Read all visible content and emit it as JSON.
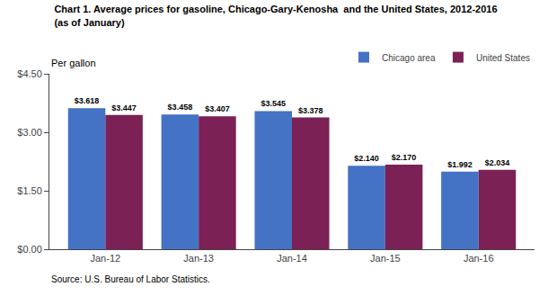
{
  "chart_data": {
    "type": "bar",
    "title": "Chart 1. Average prices for gasoline, Chicago-Gary-Kenosha  and the United States, 2012-2016",
    "subtitle": "(as of January)",
    "ylabel": "Per gallon",
    "annotations": [
      "Source: U.S. Bureau of Labor Statistics."
    ],
    "categories": [
      "Jan-12",
      "Jan-13",
      "Jan-14",
      "Jan-15",
      "Jan-16"
    ],
    "series": [
      {
        "name": "Chicago area",
        "color": "#4472C4",
        "values": [
          3.618,
          3.458,
          3.545,
          2.14,
          1.992
        ],
        "value_labels": [
          "$3.618",
          "$3.458",
          "$3.545",
          "$2.140",
          "$1.992"
        ]
      },
      {
        "name": "United States",
        "color": "#7B2155",
        "values": [
          3.447,
          3.407,
          3.378,
          2.17,
          2.034
        ],
        "value_labels": [
          "$3.447",
          "$3.407",
          "$3.378",
          "$2.170",
          "$2.034"
        ]
      }
    ],
    "ylim": [
      0,
      4.5
    ],
    "yticks": [
      {
        "value": 0.0,
        "label": "$0.00"
      },
      {
        "value": 1.5,
        "label": "$1.50"
      },
      {
        "value": 3.0,
        "label": "$3.00"
      },
      {
        "value": 4.5,
        "label": "$4.50"
      }
    ],
    "data_labels": true,
    "grid": false,
    "legend": "upper right"
  }
}
